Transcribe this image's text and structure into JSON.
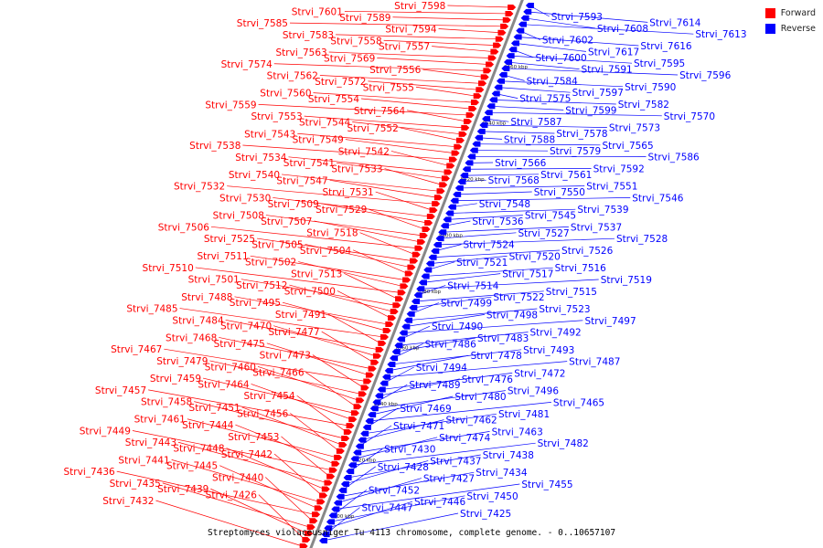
{
  "caption": "Streptomyces violaceusniger Tu 4113 chromosome, complete genome. - 0..10657107",
  "legend": [
    {
      "label": "Forward",
      "color": "#ff0000"
    },
    {
      "label": "Reverse",
      "color": "#0000ff"
    }
  ],
  "colors": {
    "forward": "#ff0000",
    "reverse": "#0000ff",
    "backbone": "#888888"
  },
  "scale_ticks": [
    "8500 kbp",
    "8520 kbp",
    "8540 kbp",
    "8560 kbp",
    "8580 kbp",
    "8600 kbp",
    "8620 kbp",
    "8640 kbp",
    "8660 kbp"
  ],
  "forward_genes": [
    "Strvi_7598",
    "Strvi_7601",
    "Strvi_7589",
    "Strvi_7585",
    "Strvi_7594",
    "Strvi_7583",
    "Strvi_7558",
    "Strvi_7557",
    "Strvi_7563",
    "Strvi_7569",
    "Strvi_7574",
    "Strvi_7556",
    "Strvi_7562",
    "Strvi_7572",
    "Strvi_7555",
    "Strvi_7560",
    "Strvi_7554",
    "Strvi_7559",
    "Strvi_7564",
    "Strvi_7553",
    "Strvi_7544",
    "Strvi_7552",
    "Strvi_7543",
    "Strvi_7549",
    "Strvi_7538",
    "Strvi_7542",
    "Strvi_7534",
    "Strvi_7541",
    "Strvi_7533",
    "Strvi_7540",
    "Strvi_7547",
    "Strvi_7532",
    "Strvi_7531",
    "Strvi_7530",
    "Strvi_7509",
    "Strvi_7529",
    "Strvi_7508",
    "Strvi_7507",
    "Strvi_7506",
    "Strvi_7518",
    "Strvi_7525",
    "Strvi_7505",
    "Strvi_7504",
    "Strvi_7511",
    "Strvi_7502",
    "Strvi_7510",
    "Strvi_7513",
    "Strvi_7501",
    "Strvi_7512",
    "Strvi_7500",
    "Strvi_7488",
    "Strvi_7495",
    "Strvi_7485",
    "Strvi_7491",
    "Strvi_7484",
    "Strvi_7470",
    "Strvi_7477",
    "Strvi_7468",
    "Strvi_7475",
    "Strvi_7467",
    "Strvi_7473",
    "Strvi_7479",
    "Strvi_7460",
    "Strvi_7466",
    "Strvi_7459",
    "Strvi_7464",
    "Strvi_7457",
    "Strvi_7454",
    "Strvi_7458",
    "Strvi_7451",
    "Strvi_7456",
    "Strvi_7461",
    "Strvi_7444",
    "Strvi_7449",
    "Strvi_7453",
    "Strvi_7443",
    "Strvi_7448",
    "Strvi_7442",
    "Strvi_7441",
    "Strvi_7445",
    "Strvi_7436",
    "Strvi_7440",
    "Strvi_7435",
    "Strvi_7439",
    "Strvi_7426",
    "Strvi_7432"
  ],
  "reverse_genes": [
    "Strvi_7593",
    "Strvi_7614",
    "Strvi_7608",
    "Strvi_7613",
    "Strvi_7602",
    "Strvi_7616",
    "Strvi_7617",
    "Strvi_7600",
    "Strvi_7595",
    "Strvi_7591",
    "Strvi_7596",
    "Strvi_7584",
    "Strvi_7590",
    "Strvi_7597",
    "Strvi_7575",
    "Strvi_7582",
    "Strvi_7599",
    "Strvi_7570",
    "Strvi_7587",
    "Strvi_7573",
    "Strvi_7578",
    "Strvi_7588",
    "Strvi_7565",
    "Strvi_7579",
    "Strvi_7586",
    "Strvi_7566",
    "Strvi_7592",
    "Strvi_7561",
    "Strvi_7568",
    "Strvi_7551",
    "Strvi_7550",
    "Strvi_7546",
    "Strvi_7548",
    "Strvi_7539",
    "Strvi_7545",
    "Strvi_7536",
    "Strvi_7537",
    "Strvi_7527",
    "Strvi_7528",
    "Strvi_7524",
    "Strvi_7526",
    "Strvi_7520",
    "Strvi_7521",
    "Strvi_7516",
    "Strvi_7517",
    "Strvi_7519",
    "Strvi_7514",
    "Strvi_7515",
    "Strvi_7522",
    "Strvi_7499",
    "Strvi_7523",
    "Strvi_7498",
    "Strvi_7497",
    "Strvi_7490",
    "Strvi_7492",
    "Strvi_7483",
    "Strvi_7486",
    "Strvi_7493",
    "Strvi_7478",
    "Strvi_7487",
    "Strvi_7494",
    "Strvi_7472",
    "Strvi_7476",
    "Strvi_7489",
    "Strvi_7496",
    "Strvi_7480",
    "Strvi_7465",
    "Strvi_7469",
    "Strvi_7481",
    "Strvi_7462",
    "Strvi_7471",
    "Strvi_7463",
    "Strvi_7474",
    "Strvi_7482",
    "Strvi_7430",
    "Strvi_7438",
    "Strvi_7437",
    "Strvi_7428",
    "Strvi_7434",
    "Strvi_7427",
    "Strvi_7455",
    "Strvi_7452",
    "Strvi_7450",
    "Strvi_7446",
    "Strvi_7447",
    "Strvi_7425"
  ]
}
